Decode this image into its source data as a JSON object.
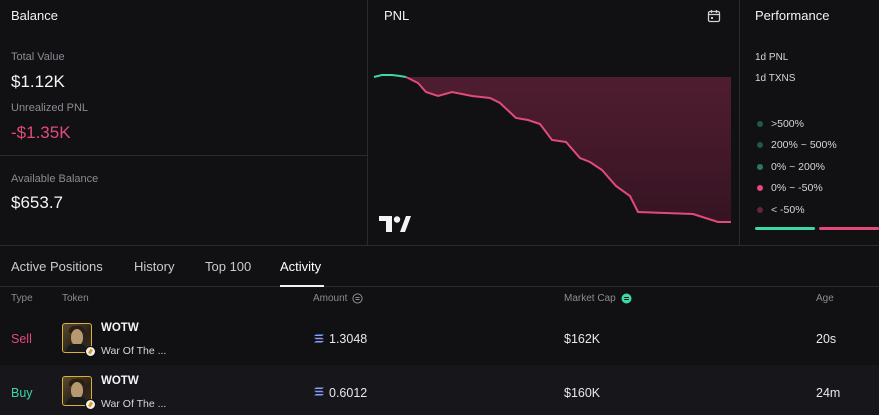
{
  "balance": {
    "title": "Balance",
    "total_value_label": "Total Value",
    "total_value": "$1.12K",
    "unrealized_label": "Unrealized PNL",
    "unrealized_value": "-$1.35K",
    "available_label": "Available Balance",
    "available_value": "$653.7"
  },
  "pnl": {
    "title": "PNL",
    "icons": [
      "calendar-icon",
      "tradingview-logo"
    ],
    "colors": {
      "positive": "#3fd7a4",
      "negative": "#e24a7a"
    }
  },
  "performance": {
    "title": "Performance",
    "pnl_1d_label": "1d PNL",
    "txns_1d_label": "1d TXNS",
    "legend": [
      {
        "label": ">500%",
        "color": "#1f5a45"
      },
      {
        "label": "200% ~ 500%",
        "color": "#1f5a45"
      },
      {
        "label": "0% ~ 200%",
        "color": "#2a7a5e"
      },
      {
        "label": "0% ~ -50%",
        "color": "#e24a7a"
      },
      {
        "label": "< -50%",
        "color": "#6a2438"
      }
    ]
  },
  "tabs": [
    {
      "label": "Active Positions"
    },
    {
      "label": "History"
    },
    {
      "label": "Top 100"
    },
    {
      "label": "Activity",
      "active": true
    }
  ],
  "table": {
    "headers": {
      "type": "Type",
      "token": "Token",
      "amount": "Amount",
      "market_cap": "Market Cap",
      "age": "Age"
    },
    "rows": [
      {
        "type": "Sell",
        "token_symbol": "WOTW",
        "token_name": "War Of The ...",
        "amount": "1.3048",
        "market_cap": "$162K",
        "age": "20s"
      },
      {
        "type": "Buy",
        "token_symbol": "WOTW",
        "token_name": "War Of The ...",
        "amount": "0.6012",
        "market_cap": "$160K",
        "age": "24m"
      }
    ]
  }
}
